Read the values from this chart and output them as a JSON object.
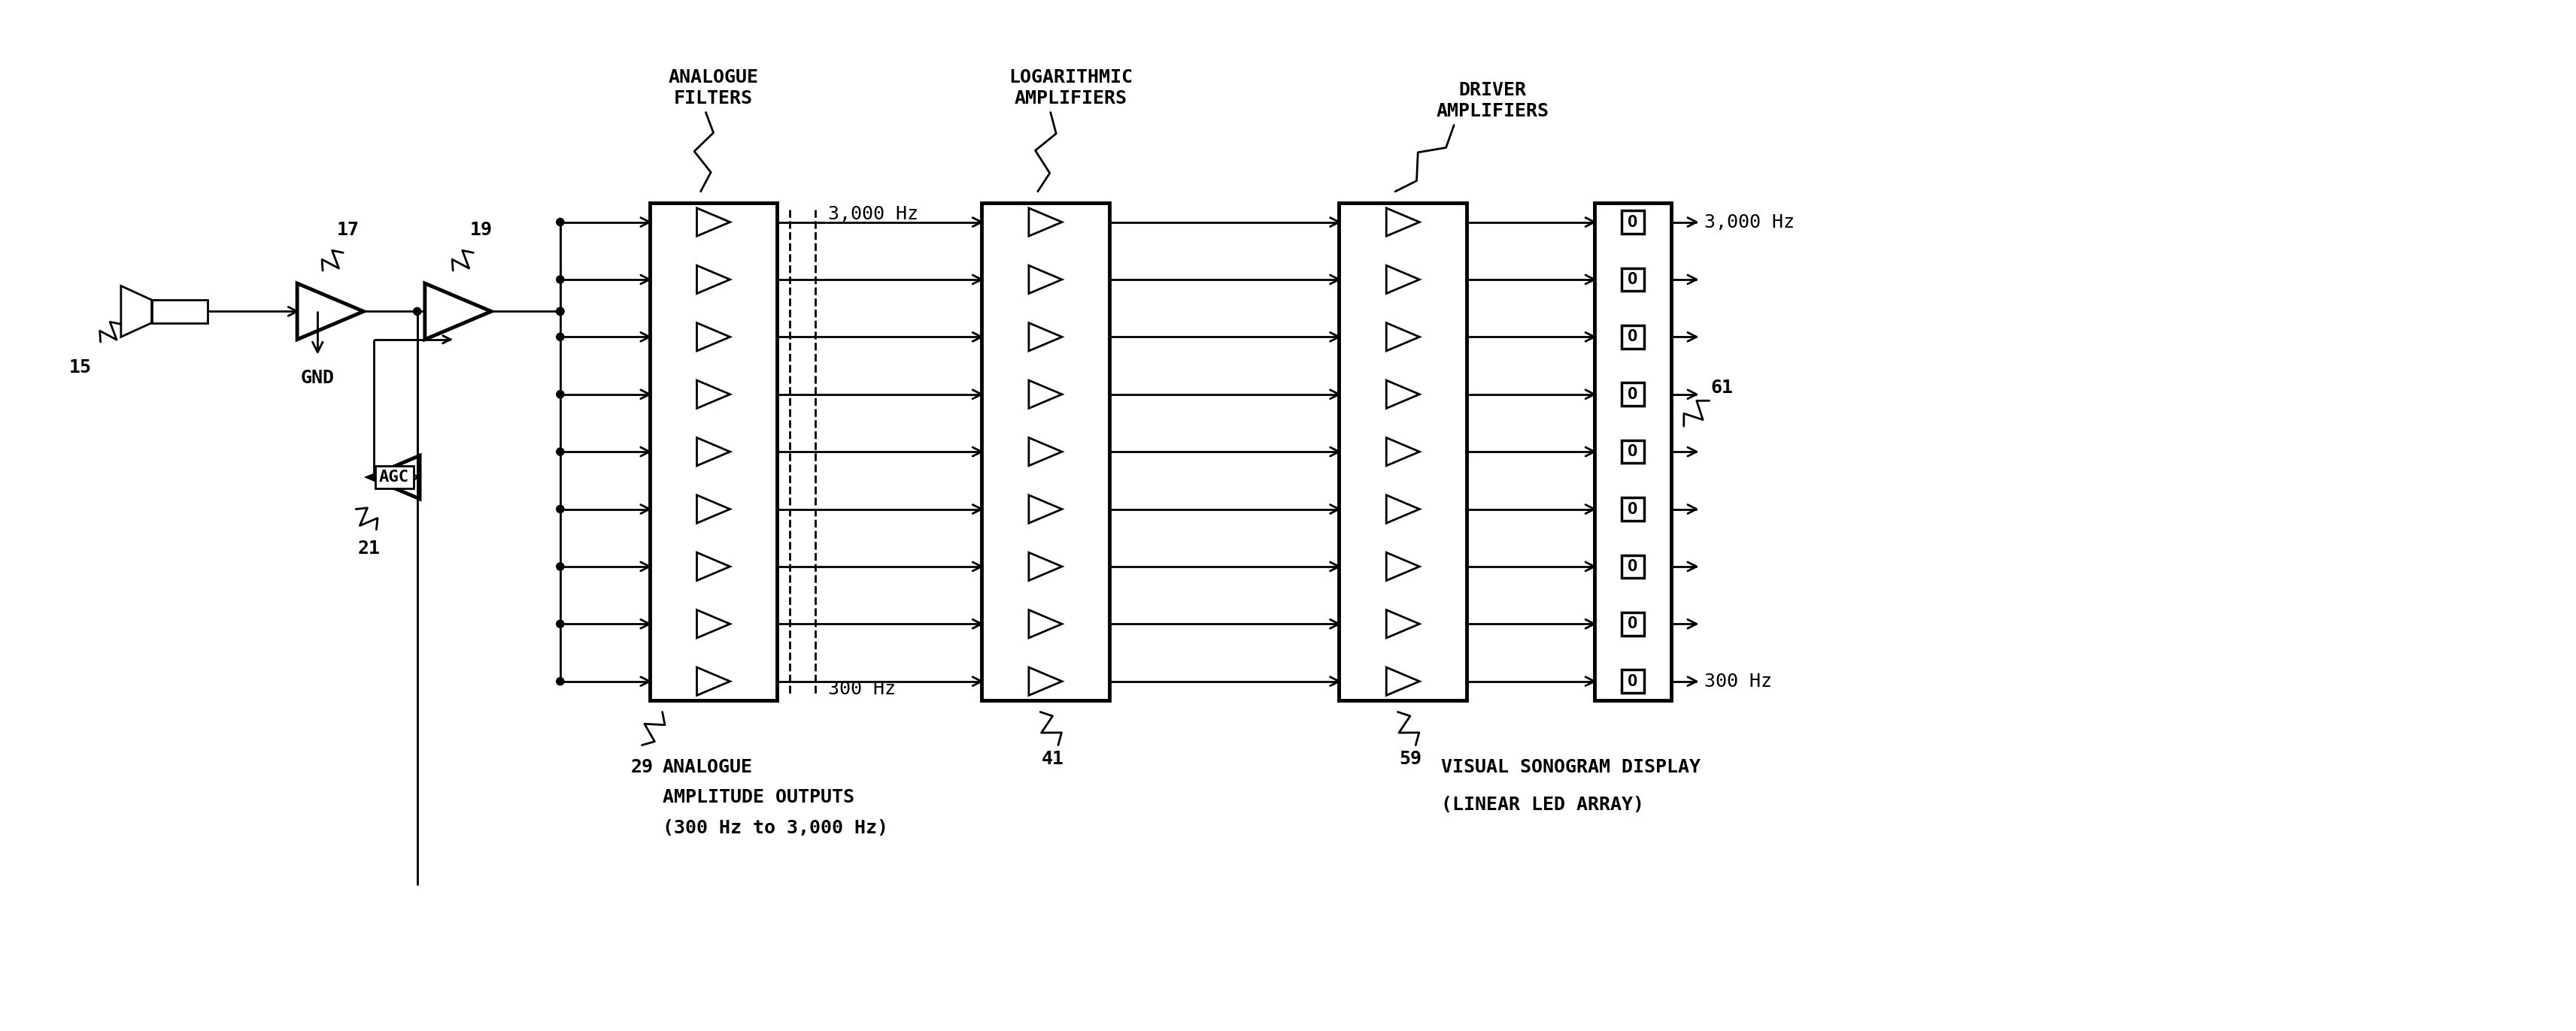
{
  "bg_color": "#ffffff",
  "line_color": "#000000",
  "font_family": "DejaVu Sans Mono",
  "num_channels": 9,
  "labels": {
    "analogue_filters": "ANALOGUE\nFILTERS",
    "log_amplifiers": "LOGARITHMIC\nAMPLIFIERS",
    "driver_amplifiers": "DRIVER\nAMPLIFIERS",
    "analogue_outputs_line1": "ANALOGUE",
    "analogue_outputs_line2": "AMPLITUDE OUTPUTS",
    "analogue_outputs_line3": "(300 Hz to 3,000 Hz)",
    "visual_display_line1": "VISUAL SONOGRAM DISPLAY",
    "visual_display_line2": "(LINEAR LED ARRAY)",
    "gnd": "GND",
    "agc": "AGC",
    "freq_top": "3,000 Hz",
    "freq_bot": "300 Hz",
    "num_15": "15",
    "num_17": "17",
    "num_19": "19",
    "num_21": "21",
    "num_29": "29",
    "num_41": "41",
    "num_59": "59",
    "num_61": "61"
  },
  "lw_thick": 3.5,
  "lw_med": 2.5,
  "lw_thin": 2.0,
  "fs_label": 18,
  "fs_num": 18
}
